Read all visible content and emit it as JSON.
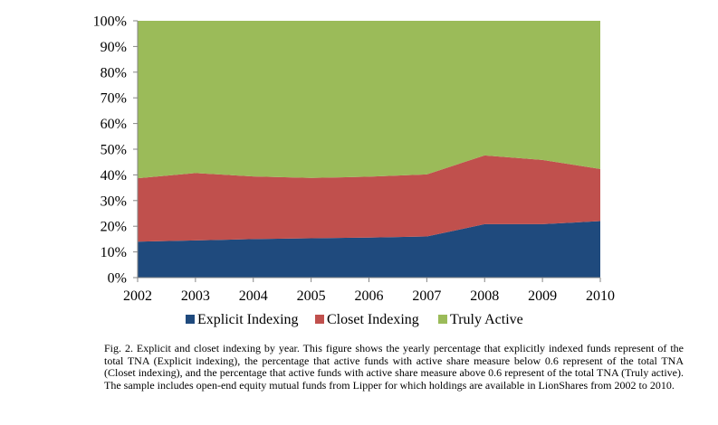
{
  "chart_data": {
    "type": "area",
    "stacked": true,
    "categories": [
      "2002",
      "2003",
      "2004",
      "2005",
      "2006",
      "2007",
      "2008",
      "2009",
      "2010"
    ],
    "series": [
      {
        "name": "Explicit Indexing",
        "color": "#1f4a7d",
        "values": [
          14,
          14.5,
          15,
          15.3,
          15.6,
          16,
          20.8,
          20.8,
          22
        ]
      },
      {
        "name": "Closet Indexing",
        "color": "#c0504d",
        "values": [
          24.7,
          26.2,
          24.4,
          23.5,
          23.7,
          24.2,
          26.8,
          25,
          20.3
        ]
      },
      {
        "name": "Truly Active",
        "color": "#9bbb59",
        "values": [
          61.3,
          59.3,
          60.6,
          61.2,
          60.7,
          59.8,
          52.4,
          54.2,
          57.7
        ]
      }
    ],
    "y_ticks": [
      "0%",
      "10%",
      "20%",
      "30%",
      "40%",
      "50%",
      "60%",
      "70%",
      "80%",
      "90%",
      "100%"
    ],
    "ylim": [
      0,
      100
    ],
    "legend_position": "bottom",
    "grid": false
  },
  "caption": "Fig. 2. Explicit and closet indexing by year. This figure shows the yearly percentage that explicitly indexed funds represent of the total TNA (Explicit indexing), the percentage that active funds with active share measure below 0.6 represent of the total TNA (Closet indexing), and the percentage that active funds with active share measure above 0.6 represent of the total TNA (Truly active). The sample includes open-end equity mutual funds from Lipper for which holdings are available in LionShares from 2002 to 2010."
}
